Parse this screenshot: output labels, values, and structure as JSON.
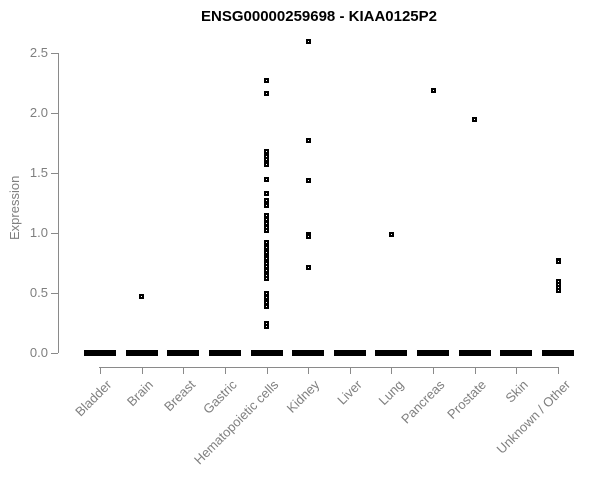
{
  "chart_data": {
    "type": "scatter",
    "subtype": "strip-plot",
    "title": "ENSG00000259698 - KIAA0125P2",
    "xlabel": "",
    "ylabel": "Expression",
    "ylim": [
      0,
      2.5
    ],
    "ytick_values": [
      0,
      0.5,
      1,
      1.5,
      2,
      2.5
    ],
    "ytick_labels": [
      "0.0",
      "0.5",
      "1.0",
      "1.5",
      "2.0",
      "2.5"
    ],
    "grid": false,
    "legend": "none",
    "point_style": "open-square",
    "categories": [
      {
        "label": "Bladder",
        "nonzero_values": [],
        "zero_cluster": true
      },
      {
        "label": "Brain",
        "nonzero_values": [
          0.47
        ],
        "zero_cluster": true
      },
      {
        "label": "Breast",
        "nonzero_values": [],
        "zero_cluster": true
      },
      {
        "label": "Gastric",
        "nonzero_values": [],
        "zero_cluster": true
      },
      {
        "label": "Hematopoietic cells",
        "nonzero_values": [
          2.27,
          2.16,
          1.68,
          1.64,
          1.61,
          1.57,
          1.45,
          1.33,
          1.27,
          1.23,
          1.15,
          1.11,
          1.08,
          1.05,
          1.02,
          0.92,
          0.88,
          0.84,
          0.8,
          0.79,
          0.75,
          0.72,
          0.69,
          0.65,
          0.62,
          0.5,
          0.46,
          0.42,
          0.39,
          0.25,
          0.22
        ],
        "zero_cluster": true
      },
      {
        "label": "Kidney",
        "nonzero_values": [
          2.6,
          1.77,
          1.44,
          0.99,
          0.97,
          0.71
        ],
        "zero_cluster": true
      },
      {
        "label": "Liver",
        "nonzero_values": [],
        "zero_cluster": true
      },
      {
        "label": "Lung",
        "nonzero_values": [
          0.99
        ],
        "zero_cluster": true
      },
      {
        "label": "Pancreas",
        "nonzero_values": [
          2.19
        ],
        "zero_cluster": true
      },
      {
        "label": "Prostate",
        "nonzero_values": [
          1.95
        ],
        "zero_cluster": true
      },
      {
        "label": "Skin",
        "nonzero_values": [],
        "zero_cluster": true
      },
      {
        "label": "Unknown / Other",
        "nonzero_values": [
          0.77,
          0.76,
          0.6,
          0.57,
          0.55,
          0.52
        ],
        "zero_cluster": true
      }
    ],
    "colors": {
      "point": "#000000",
      "zero_cluster_bar": "#000000",
      "axis": "#8a8a8a",
      "tick_label": "#7f7f7f",
      "title": "#000000",
      "background": "#ffffff"
    }
  }
}
